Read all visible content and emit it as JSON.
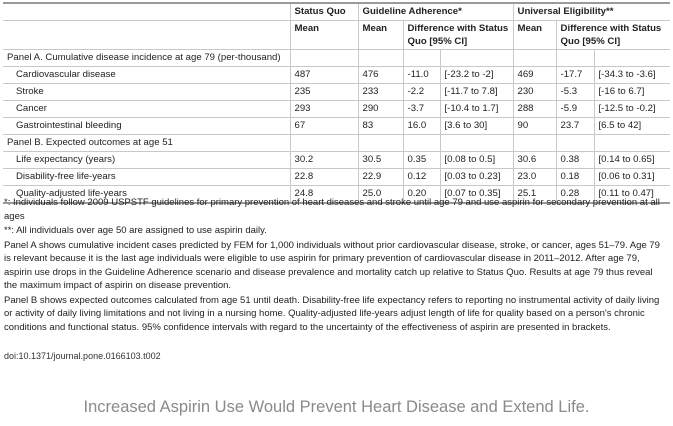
{
  "table": {
    "header_groups": [
      "",
      "Status Quo",
      "Guideline Adherence*",
      "Universal Eligibility**"
    ],
    "subheaders": [
      "Mean",
      "Mean",
      "Difference with Status Quo [95% CI]",
      "Mean",
      "Difference with Status Quo [95% CI]"
    ],
    "panel_a": {
      "title": "Panel A. Cumulative disease incidence at age 79 (per-thousand)",
      "rows": [
        {
          "label": "Cardiovascular disease",
          "sq": "487",
          "ga_mean": "476",
          "ga_diff": "-11.0",
          "ga_ci": "[-23.2 to -2]",
          "ue_mean": "469",
          "ue_diff": "-17.7",
          "ue_ci": "[-34.3 to -3.6]"
        },
        {
          "label": "Stroke",
          "sq": "235",
          "ga_mean": "233",
          "ga_diff": "-2.2",
          "ga_ci": "[-11.7 to 7.8]",
          "ue_mean": "230",
          "ue_diff": "-5.3",
          "ue_ci": "[-16 to 6.7]"
        },
        {
          "label": "Cancer",
          "sq": "293",
          "ga_mean": "290",
          "ga_diff": "-3.7",
          "ga_ci": "[-10.4 to 1.7]",
          "ue_mean": "288",
          "ue_diff": "-5.9",
          "ue_ci": "[-12.5 to -0.2]"
        },
        {
          "label": "Gastrointestinal bleeding",
          "sq": "67",
          "ga_mean": "83",
          "ga_diff": "16.0",
          "ga_ci": "[3.6 to 30]",
          "ue_mean": "90",
          "ue_diff": "23.7",
          "ue_ci": "[6.5 to 42]"
        }
      ]
    },
    "panel_b": {
      "title": "Panel B. Expected outcomes at age 51",
      "rows": [
        {
          "label": "Life expectancy (years)",
          "sq": "30.2",
          "ga_mean": "30.5",
          "ga_diff": "0.35",
          "ga_ci": "[0.08 to 0.5]",
          "ue_mean": "30.6",
          "ue_diff": "0.38",
          "ue_ci": "[0.14 to 0.65]"
        },
        {
          "label": "Disability-free life-years",
          "sq": "22.8",
          "ga_mean": "22.9",
          "ga_diff": "0.12",
          "ga_ci": "[0.03 to 0.23]",
          "ue_mean": "23.0",
          "ue_diff": "0.18",
          "ue_ci": "[0.06 to 0.31]"
        },
        {
          "label": "Quality-adjusted life-years",
          "sq": "24.8",
          "ga_mean": "25.0",
          "ga_diff": "0.20",
          "ga_ci": "[0.07 to 0.35]",
          "ue_mean": "25.1",
          "ue_diff": "0.28",
          "ue_ci": "[0.11 to 0.47]"
        }
      ]
    }
  },
  "notes": [
    "*: Individuals follow 2009 USPSTF guidelines for primary prevention of heart diseases and stroke until age 79 and use aspirin for secondary prevention at all ages",
    "**: All individuals over age 50 are assigned to use aspirin daily.",
    "Panel A shows cumulative incident cases predicted by FEM for 1,000 individuals without prior cardiovascular disease, stroke, or cancer, ages 51–79. Age 79 is relevant because it is the last age individuals were eligible to use aspirin for primary prevention of cardiovascular disease in 2011–2012. After age 79, aspirin use drops in the Guideline Adherence scenario and disease prevalence and mortality catch up relative to Status Quo. Results at age 79 thus reveal the maximum impact of aspirin on disease prevention.",
    "Panel B shows expected outcomes calculated from age 51 until death. Disability-free life expectancy refers to reporting no instrumental activity of daily living or activity of daily living limitations and not living in a nursing home. Quality-adjusted life-years adjust length of life for quality based on a person's chronic conditions and functional status. 95% confidence intervals with regard to the uncertainty of the effectiveness of aspirin are presented in brackets."
  ],
  "doi": "doi:10.1371/journal.pone.0166103.t002",
  "caption": "Increased Aspirin Use Would Prevent Heart Disease and Extend Life."
}
